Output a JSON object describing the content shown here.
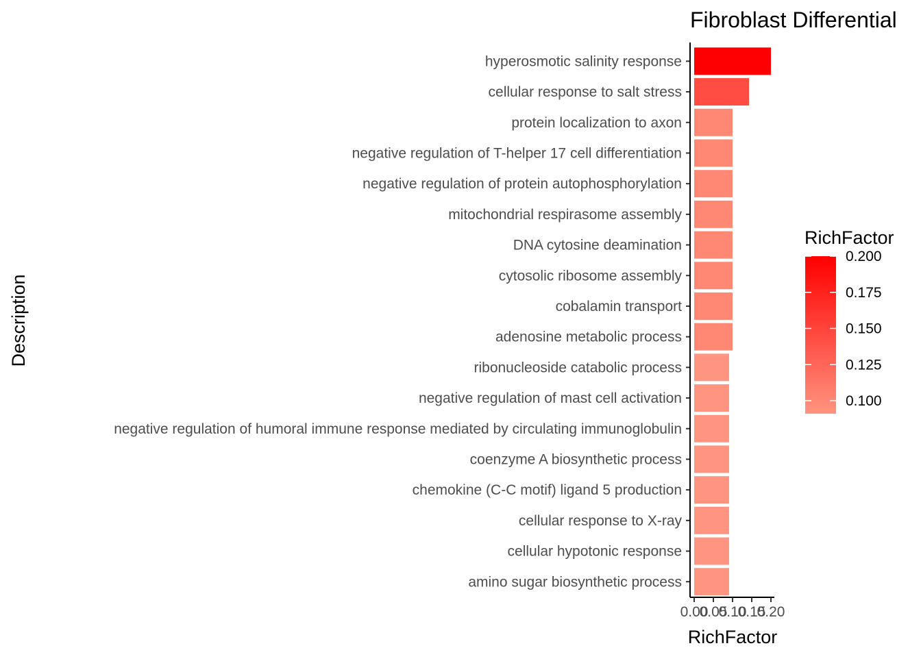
{
  "chart_data": {
    "type": "bar",
    "orientation": "horizontal",
    "title": "Fibroblast Differential",
    "xlabel": "RichFactor",
    "ylabel": "Description",
    "xlim": [
      0,
      0.2
    ],
    "x_ticks": [
      "0.00",
      "0.05",
      "0.10",
      "0.15",
      "0.20"
    ],
    "grid": false,
    "categories": [
      "hyperosmotic salinity response",
      "cellular response to salt stress",
      "protein localization to axon",
      "negative regulation of T-helper 17 cell differentiation",
      "negative regulation of protein autophosphorylation",
      "mitochondrial respirasome assembly",
      "DNA cytosine deamination",
      "cytosolic ribosome assembly",
      "cobalamin transport",
      "adenosine metabolic process",
      "ribonucleoside catabolic process",
      "negative regulation of mast cell activation",
      "negative regulation of humoral immune response mediated by circulating immunoglobulin",
      "coenzyme A biosynthetic process",
      "chemokine (C-C motif) ligand 5 production",
      "cellular response to X-ray",
      "cellular hypotonic response",
      "amino sugar biosynthetic process"
    ],
    "values": [
      0.2,
      0.143,
      0.1,
      0.1,
      0.1,
      0.1,
      0.1,
      0.1,
      0.1,
      0.1,
      0.091,
      0.091,
      0.091,
      0.091,
      0.091,
      0.091,
      0.091,
      0.091
    ],
    "legend": {
      "title": "RichFactor",
      "position": "right",
      "labels": [
        "0.200",
        "0.175",
        "0.150",
        "0.125",
        "0.100"
      ],
      "range": [
        0.091,
        0.2
      ],
      "color_low": "#ff9480",
      "color_high": "#ff0000"
    }
  }
}
